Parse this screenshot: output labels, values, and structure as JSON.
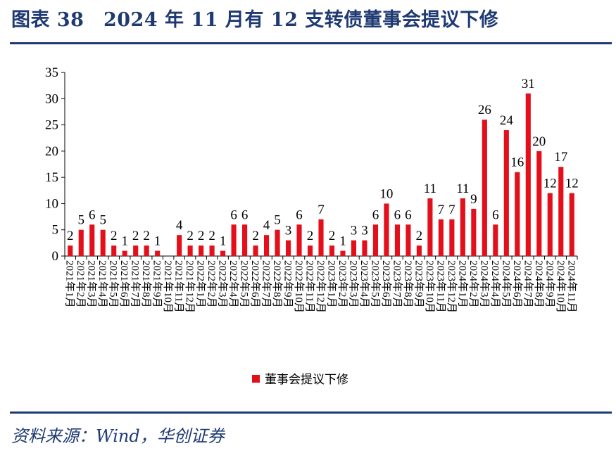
{
  "header": {
    "title": "图表 38　2024 年 11 月有 12 支转债董事会提议下修"
  },
  "footer": {
    "source": "资料来源：Wind，华创证券"
  },
  "chart_data": {
    "type": "bar",
    "categories": [
      "2021年1月",
      "2021年2月",
      "2021年3月",
      "2021年4月",
      "2021年5月",
      "2021年6月",
      "2021年7月",
      "2021年8月",
      "2021年9月",
      "2021年10月",
      "2021年11月",
      "2021年12月",
      "2022年1月",
      "2022年2月",
      "2022年3月",
      "2022年4月",
      "2022年5月",
      "2022年6月",
      "2022年7月",
      "2022年8月",
      "2022年9月",
      "2022年10月",
      "2022年11月",
      "2022年12月",
      "2023年1月",
      "2023年2月",
      "2023年3月",
      "2023年4月",
      "2023年5月",
      "2023年6月",
      "2023年7月",
      "2023年8月",
      "2023年9月",
      "2023年10月",
      "2023年11月",
      "2023年12月",
      "2024年1月",
      "2024年2月",
      "2024年3月",
      "2024年4月",
      "2024年5月",
      "2024年6月",
      "2024年7月",
      "2024年8月",
      "2024年9月",
      "2024年10月",
      "2024年11月"
    ],
    "series": [
      {
        "name": "董事会提议下修",
        "color": "#e3101b",
        "values": [
          2,
          5,
          6,
          5,
          2,
          1,
          2,
          2,
          1,
          null,
          4,
          2,
          2,
          2,
          1,
          6,
          6,
          2,
          4,
          5,
          3,
          6,
          2,
          7,
          2,
          1,
          3,
          3,
          6,
          10,
          6,
          6,
          2,
          11,
          7,
          7,
          11,
          9,
          26,
          6,
          24,
          16,
          31,
          20,
          12,
          17,
          12
        ]
      }
    ],
    "yticks": [
      0,
      5,
      10,
      15,
      20,
      25,
      30,
      35
    ],
    "ylim": [
      0,
      35
    ],
    "grid": false,
    "legend_position": "bottom-center"
  }
}
